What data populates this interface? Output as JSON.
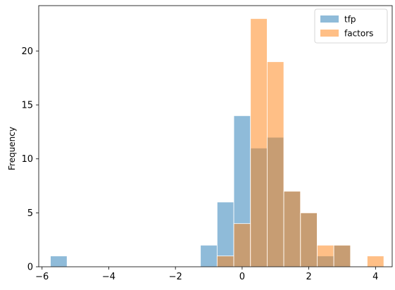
{
  "chart_data": {
    "type": "bar",
    "title": "",
    "xlabel": "",
    "ylabel": "Frequency",
    "xlim": [
      -6.1,
      4.5
    ],
    "ylim": [
      0,
      24.2
    ],
    "xticks": [
      -6,
      -4,
      -2,
      0,
      2,
      4
    ],
    "xtick_labels": [
      "−6",
      "−4",
      "−2",
      "0",
      "2",
      "4"
    ],
    "yticks": [
      0,
      5,
      10,
      15,
      20
    ],
    "ytick_labels": [
      "0",
      "5",
      "10",
      "15",
      "20"
    ],
    "grid": false,
    "legend_position": "top-right",
    "bin_width": 0.5,
    "series": [
      {
        "name": "tfp",
        "color": "#1f77b4",
        "bins": [
          {
            "x0": -5.75,
            "count": 1
          },
          {
            "x0": -1.25,
            "count": 2
          },
          {
            "x0": -0.75,
            "count": 6
          },
          {
            "x0": -0.25,
            "count": 14
          },
          {
            "x0": 0.25,
            "count": 11
          },
          {
            "x0": 0.75,
            "count": 12
          },
          {
            "x0": 1.25,
            "count": 7
          },
          {
            "x0": 1.75,
            "count": 5
          },
          {
            "x0": 2.25,
            "count": 1
          },
          {
            "x0": 2.75,
            "count": 2
          }
        ]
      },
      {
        "name": "factors",
        "color": "#ff7f0e",
        "bins": [
          {
            "x0": -0.75,
            "count": 1
          },
          {
            "x0": -0.25,
            "count": 4
          },
          {
            "x0": 0.25,
            "count": 23
          },
          {
            "x0": 0.75,
            "count": 19
          },
          {
            "x0": 1.25,
            "count": 7
          },
          {
            "x0": 1.75,
            "count": 5
          },
          {
            "x0": 2.25,
            "count": 2
          },
          {
            "x0": 2.75,
            "count": 2
          },
          {
            "x0": 3.75,
            "count": 1
          }
        ]
      }
    ]
  }
}
